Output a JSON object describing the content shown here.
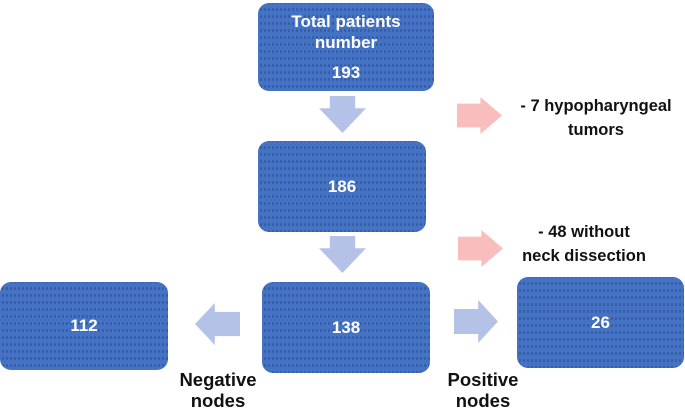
{
  "figure": {
    "boxes": {
      "total": {
        "line1": "Total patients",
        "line2": "number",
        "value": "193"
      },
      "after_tumor_exclusion": {
        "value": "186"
      },
      "after_dissection_exclusion": {
        "value": "138"
      },
      "negative_nodes": {
        "value": "112"
      },
      "positive_nodes": {
        "value": "26"
      }
    },
    "exclusions": {
      "first": {
        "line1": "- 7 hypopharyngeal",
        "line2": "tumors"
      },
      "second": {
        "line1": "- 48 without",
        "line2": "neck dissection"
      }
    },
    "labels": {
      "negative": {
        "line1": "Negative",
        "line2": "nodes"
      },
      "positive": {
        "line1": "Positive",
        "line2": "nodes"
      }
    }
  },
  "colors": {
    "box_fill": "#4472c4",
    "box_text": "#ffffff",
    "arrow_lavender": "#b5c2e8",
    "arrow_pink": "#f9bdbd",
    "annotation_text": "#111111"
  }
}
